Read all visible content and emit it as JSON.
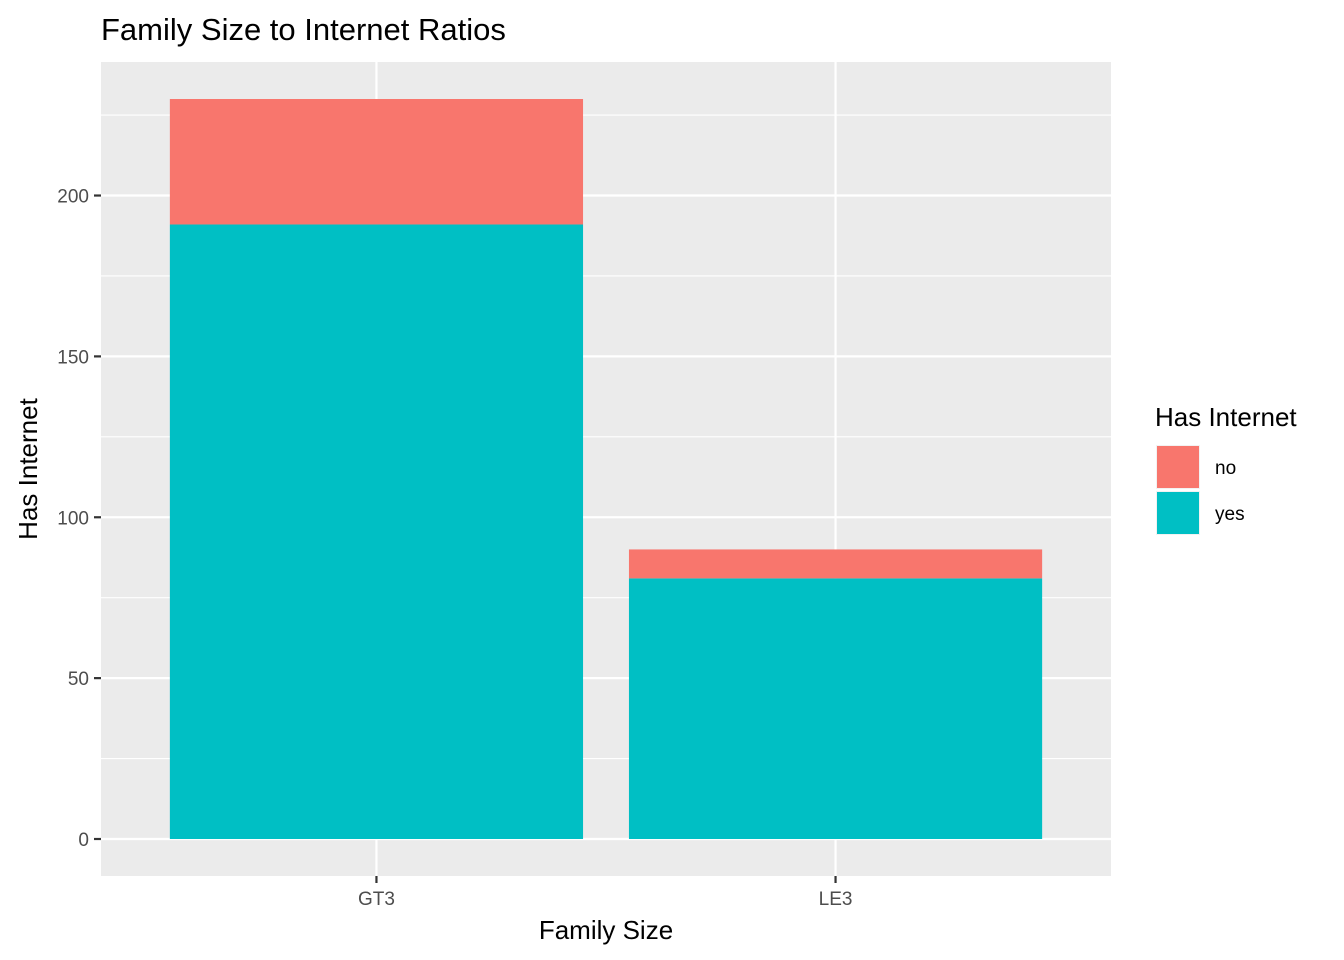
{
  "chart_data": {
    "type": "bar",
    "stacked": true,
    "title": "Family Size to Internet Ratios",
    "xlabel": "Family Size",
    "ylabel": "Has Internet",
    "categories": [
      "GT3",
      "LE3"
    ],
    "series": [
      {
        "name": "no",
        "color": "#F8766D",
        "values": [
          39,
          9
        ]
      },
      {
        "name": "yes",
        "color": "#00BFC4",
        "values": [
          191,
          81
        ]
      }
    ],
    "ylim": [
      -11.5,
      241.5
    ],
    "yticks": [
      0,
      50,
      100,
      150,
      200
    ],
    "yticks_minor": [
      25,
      75,
      125,
      175,
      225
    ],
    "grid": true,
    "legend": {
      "title": "Has Internet",
      "placement": "right"
    },
    "colors": {
      "panel_background": "#EBEBEB",
      "grid": "#FFFFFF"
    }
  }
}
